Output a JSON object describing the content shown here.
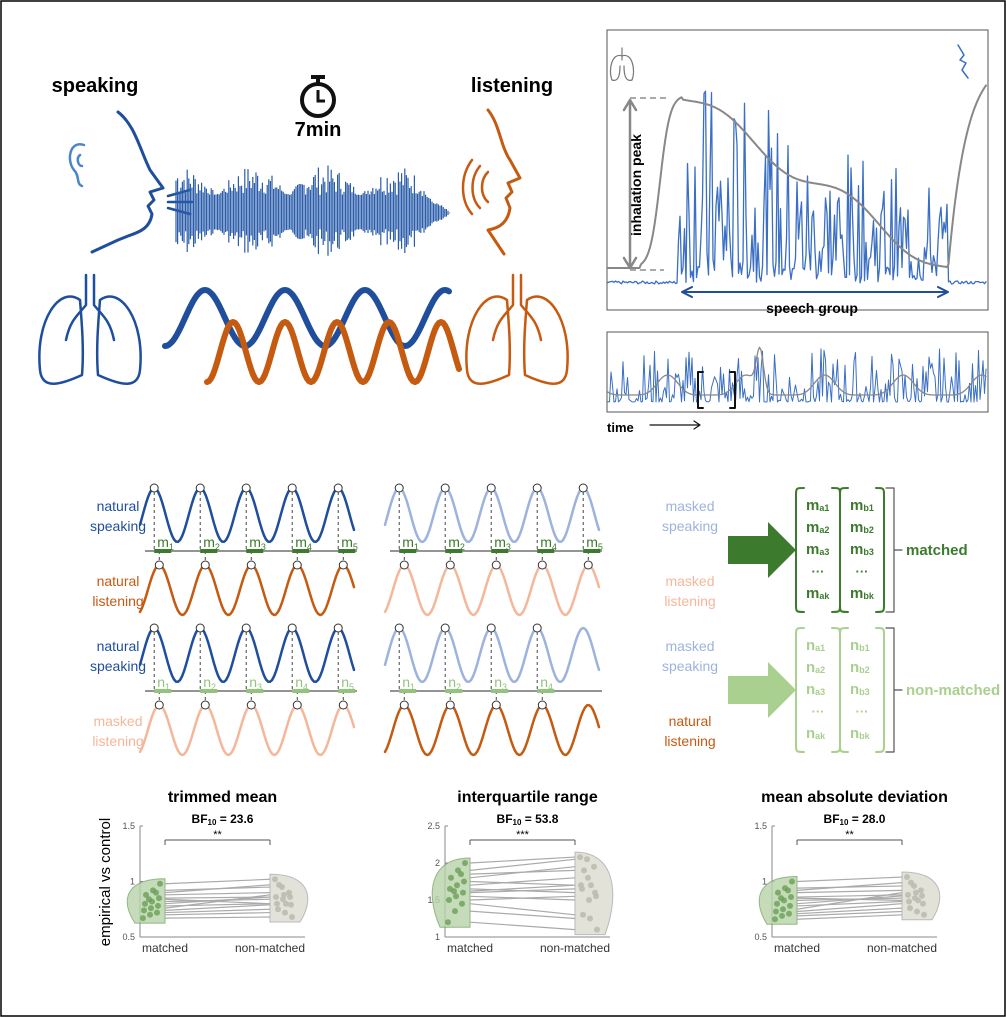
{
  "top": {
    "speaking": "speaking",
    "duration": "7min",
    "listening": "listening",
    "inhalation_label": "inhalation peak",
    "speech_group": "speech group",
    "time_label": "time"
  },
  "panels": [
    {
      "speaker": {
        "line1": "natural",
        "line2": "speaking"
      },
      "listener": {
        "line1": "natural",
        "line2": "listening"
      },
      "intervals": [
        {
          "base": "m",
          "sub": "1"
        },
        {
          "base": "m",
          "sub": "2"
        },
        {
          "base": "m",
          "sub": "3"
        },
        {
          "base": "m",
          "sub": "4"
        },
        {
          "base": "m",
          "sub": "5"
        }
      ]
    },
    {
      "speaker": {
        "line1": "masked",
        "line2": "speaking"
      },
      "listener": {
        "line1": "masked",
        "line2": "listening"
      },
      "intervals": [
        {
          "base": "m",
          "sub": "1"
        },
        {
          "base": "m",
          "sub": "2"
        },
        {
          "base": "m",
          "sub": "3"
        },
        {
          "base": "m",
          "sub": "4"
        },
        {
          "base": "m",
          "sub": "5"
        }
      ]
    },
    {
      "speaker": {
        "line1": "natural",
        "line2": "speaking"
      },
      "listener": {
        "line1": "masked",
        "line2": "listening"
      },
      "intervals": [
        {
          "base": "n",
          "sub": "1"
        },
        {
          "base": "n",
          "sub": "2"
        },
        {
          "base": "n",
          "sub": "3"
        },
        {
          "base": "n",
          "sub": "4"
        },
        {
          "base": "n",
          "sub": "5"
        }
      ]
    },
    {
      "speaker": {
        "line1": "masked",
        "line2": "speaking"
      },
      "listener": {
        "line1": "natural",
        "line2": "listening"
      },
      "intervals": [
        {
          "base": "n",
          "sub": "1"
        },
        {
          "base": "n",
          "sub": "2"
        },
        {
          "base": "n",
          "sub": "3"
        },
        {
          "base": "n",
          "sub": "4"
        }
      ]
    }
  ],
  "matrices": [
    {
      "label": "matched",
      "columns": [
        [
          {
            "base": "m",
            "sub": "a1"
          },
          {
            "base": "m",
            "sub": "a2"
          },
          {
            "base": "m",
            "sub": "a3"
          },
          "···",
          {
            "base": "m",
            "sub": "ak"
          }
        ],
        [
          {
            "base": "m",
            "sub": "b1"
          },
          {
            "base": "m",
            "sub": "b2"
          },
          {
            "base": "m",
            "sub": "b3"
          },
          "···",
          {
            "base": "m",
            "sub": "bk"
          }
        ]
      ]
    },
    {
      "label": "non-matched",
      "columns": [
        [
          {
            "base": "n",
            "sub": "a1"
          },
          {
            "base": "n",
            "sub": "a2"
          },
          {
            "base": "n",
            "sub": "a3"
          },
          "···",
          {
            "base": "n",
            "sub": "ak"
          }
        ],
        [
          {
            "base": "n",
            "sub": "b1"
          },
          {
            "base": "n",
            "sub": "b2"
          },
          {
            "base": "n",
            "sub": "b3"
          },
          "···",
          {
            "base": "n",
            "sub": "bk"
          }
        ]
      ]
    }
  ],
  "y_label": "empirical vs control",
  "plots": [
    {
      "title": "trimmed mean",
      "bf": {
        "base": "BF",
        "sub": "10",
        "rest": " = 23.6"
      },
      "significance": "**",
      "ylim": [
        0.5,
        1.5
      ],
      "yticks": [
        0.5,
        1,
        1.5
      ],
      "categories": [
        "matched",
        "non-matched"
      ],
      "matched": [
        0.98,
        0.92,
        0.88,
        0.85,
        0.82,
        0.8,
        0.78,
        0.76,
        0.74,
        0.72,
        0.7,
        0.67,
        0.9,
        0.84
      ],
      "non_matched": [
        1.02,
        0.95,
        0.9,
        0.86,
        0.84,
        0.86,
        0.8,
        0.88,
        0.79,
        0.75,
        0.72,
        0.68,
        0.97,
        0.8
      ]
    },
    {
      "title": "interquartile range",
      "bf": {
        "base": "BF",
        "sub": "10",
        "rest": " = 53.8"
      },
      "significance": "***",
      "ylim": [
        1,
        2.5
      ],
      "yticks": [
        1,
        1.5,
        2,
        2.5
      ],
      "categories": [
        "matched",
        "non-matched"
      ],
      "matched": [
        2.0,
        1.9,
        1.8,
        1.75,
        1.7,
        1.65,
        1.6,
        1.55,
        1.5,
        1.45,
        1.35,
        1.2,
        1.85,
        1.62
      ],
      "non_matched": [
        2.08,
        2.05,
        1.95,
        1.7,
        1.8,
        1.6,
        1.65,
        1.5,
        1.55,
        1.3,
        1.25,
        1.1,
        1.9,
        1.7
      ]
    },
    {
      "title": "mean absolute deviation",
      "bf": {
        "base": "BF",
        "sub": "10",
        "rest": " = 28.0"
      },
      "significance": "**",
      "ylim": [
        0.5,
        1.5
      ],
      "yticks": [
        0.5,
        1,
        1.5
      ],
      "categories": [
        "matched",
        "non-matched"
      ],
      "matched": [
        1.0,
        0.94,
        0.9,
        0.86,
        0.83,
        0.8,
        0.78,
        0.75,
        0.73,
        0.71,
        0.69,
        0.66,
        0.92,
        0.85
      ],
      "non_matched": [
        1.04,
        0.96,
        0.92,
        0.88,
        0.85,
        0.87,
        0.82,
        0.9,
        0.8,
        0.76,
        0.73,
        0.7,
        0.99,
        0.83
      ]
    }
  ]
}
